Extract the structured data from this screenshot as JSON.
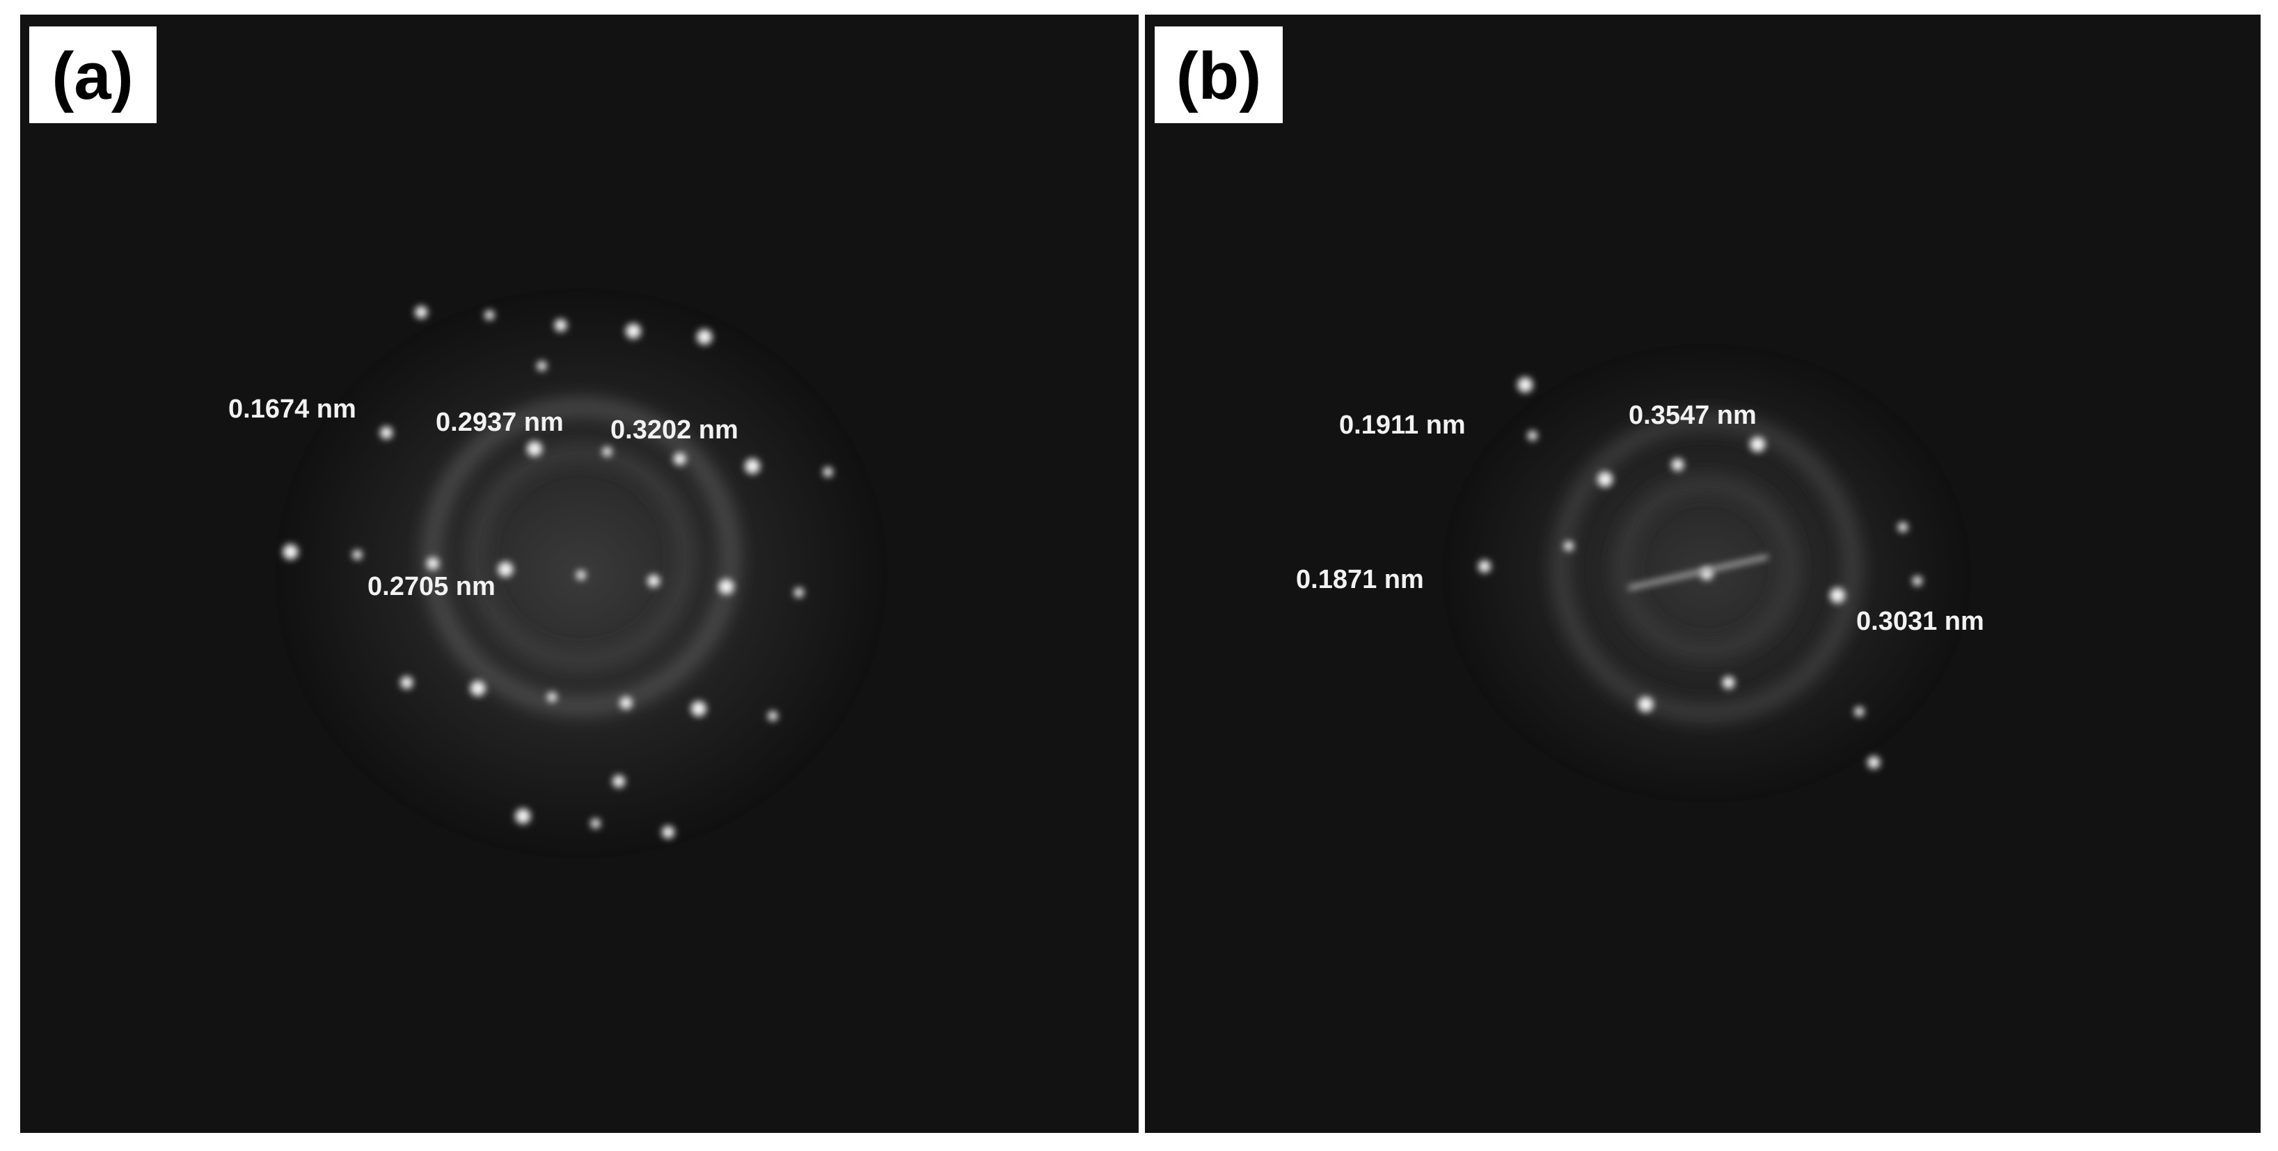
{
  "panels": [
    {
      "label": "(a)",
      "annotations": [
        "0.1674 nm",
        "0.2937 nm",
        "0.3202 nm",
        "0.2705 nm"
      ]
    },
    {
      "label": "(b)",
      "annotations": [
        "0.1911 nm",
        "0.3547 nm",
        "0.1871 nm",
        "0.3031 nm"
      ]
    }
  ]
}
